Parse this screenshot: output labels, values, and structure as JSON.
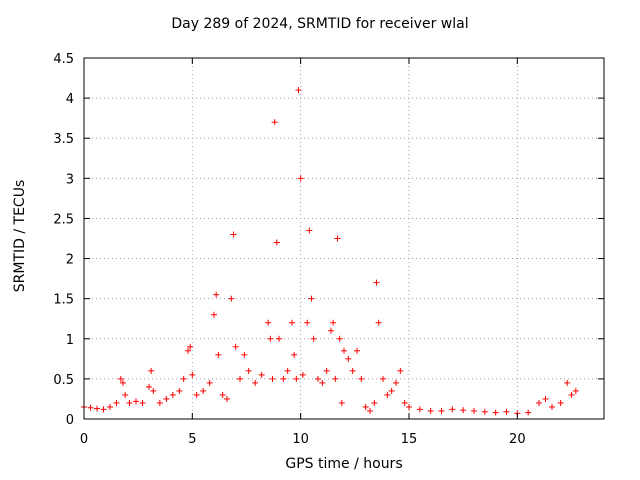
{
  "chart_data": {
    "type": "scatter",
    "title": "Day 289 of 2024, SRMTID for receiver wlal",
    "xlabel": "GPS time / hours",
    "ylabel": "SRMTID / TECUs",
    "xlim": [
      0,
      24
    ],
    "ylim": [
      0,
      4.5
    ],
    "xticks": [
      0,
      5,
      10,
      15,
      20
    ],
    "yticks": [
      0,
      0.5,
      1,
      1.5,
      2,
      2.5,
      3,
      3.5,
      4,
      4.5
    ],
    "ytick_labels": [
      "0",
      "0.5",
      "1",
      "1.5",
      "2",
      "2.5",
      "3",
      "3.5",
      "4",
      "4.5"
    ],
    "grid": true,
    "marker": "+",
    "color": "#ff0000",
    "series": [
      {
        "name": "SRMTID",
        "x": [
          0.0,
          0.3,
          0.6,
          0.9,
          1.2,
          1.5,
          1.7,
          1.8,
          1.9,
          2.1,
          2.4,
          2.7,
          3.0,
          3.1,
          3.2,
          3.5,
          3.8,
          4.1,
          4.4,
          4.6,
          4.8,
          4.9,
          5.0,
          5.2,
          5.5,
          5.8,
          6.0,
          6.1,
          6.2,
          6.4,
          6.6,
          6.8,
          6.9,
          7.0,
          7.2,
          7.4,
          7.6,
          7.9,
          8.2,
          8.5,
          8.6,
          8.7,
          8.8,
          8.9,
          9.0,
          9.2,
          9.4,
          9.6,
          9.7,
          9.8,
          9.9,
          10.0,
          10.1,
          10.3,
          10.4,
          10.5,
          10.6,
          10.8,
          11.0,
          11.2,
          11.4,
          11.5,
          11.6,
          11.7,
          11.8,
          11.9,
          12.0,
          12.2,
          12.4,
          12.6,
          12.8,
          13.0,
          13.2,
          13.4,
          13.5,
          13.6,
          13.8,
          14.0,
          14.2,
          14.4,
          14.6,
          14.8,
          15.0,
          15.5,
          16.0,
          16.5,
          17.0,
          17.5,
          18.0,
          18.5,
          19.0,
          19.5,
          20.0,
          20.5,
          21.0,
          21.3,
          21.6,
          22.0,
          22.3,
          22.5,
          22.7
        ],
        "y": [
          0.15,
          0.14,
          0.13,
          0.12,
          0.15,
          0.2,
          0.5,
          0.45,
          0.3,
          0.2,
          0.22,
          0.2,
          0.4,
          0.6,
          0.35,
          0.2,
          0.25,
          0.3,
          0.35,
          0.5,
          0.85,
          0.9,
          0.55,
          0.3,
          0.35,
          0.45,
          1.3,
          1.55,
          0.8,
          0.3,
          0.25,
          1.5,
          2.3,
          0.9,
          0.5,
          0.8,
          0.6,
          0.45,
          0.55,
          1.2,
          1.0,
          0.5,
          3.7,
          2.2,
          1.0,
          0.5,
          0.6,
          1.2,
          0.8,
          0.5,
          4.1,
          3.0,
          0.55,
          1.2,
          2.35,
          1.5,
          1.0,
          0.5,
          0.45,
          0.6,
          1.1,
          1.2,
          0.5,
          2.25,
          1.0,
          0.2,
          0.85,
          0.75,
          0.6,
          0.85,
          0.5,
          0.15,
          0.1,
          0.2,
          1.7,
          1.2,
          0.5,
          0.3,
          0.35,
          0.45,
          0.6,
          0.2,
          0.15,
          0.12,
          0.1,
          0.1,
          0.12,
          0.11,
          0.1,
          0.09,
          0.08,
          0.09,
          0.07,
          0.08,
          0.2,
          0.25,
          0.15,
          0.2,
          0.45,
          0.3,
          0.35
        ]
      }
    ]
  }
}
